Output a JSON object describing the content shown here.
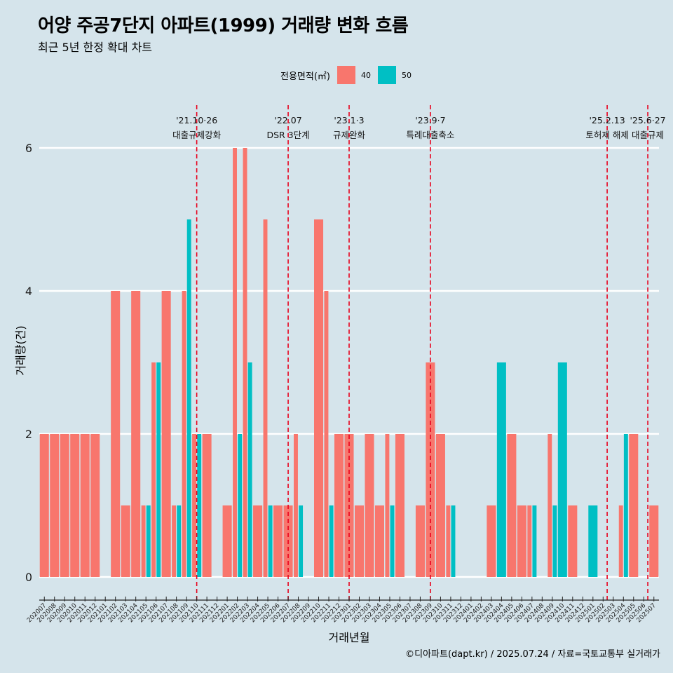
{
  "chart_data": {
    "type": "bar",
    "title": "어양 주공7단지 아파트(1999) 거래량 변화 흐름",
    "subtitle": "최근 5년 한정 확대 차트",
    "xlabel": "거래년월",
    "ylabel": "거래량(건)",
    "ylim": [
      0,
      6.4
    ],
    "yticks": [
      0,
      2,
      4,
      6
    ],
    "grid": true,
    "legend": {
      "title": "전용면적(㎡)",
      "position": "top",
      "entries": [
        {
          "name": "40",
          "color": "#f8766d"
        },
        {
          "name": "50",
          "color": "#00bfc4"
        }
      ]
    },
    "caption": "©디아파트(dapt.kr) / 2025.07.24 / 자료=국토교통부 실거래가",
    "categories": [
      "202007",
      "202008",
      "202009",
      "202010",
      "202011",
      "202012",
      "202101",
      "202102",
      "202103",
      "202104",
      "202105",
      "202106",
      "202107",
      "202108",
      "202109",
      "202110",
      "202111",
      "202112",
      "202201",
      "202202",
      "202203",
      "202204",
      "202205",
      "202206",
      "202207",
      "202208",
      "202209",
      "202210",
      "202211",
      "202212",
      "202301",
      "202302",
      "202303",
      "202304",
      "202305",
      "202306",
      "202307",
      "202308",
      "202309",
      "202310",
      "202311",
      "202312",
      "202401",
      "202402",
      "202403",
      "202404",
      "202405",
      "202406",
      "202407",
      "202408",
      "202409",
      "202410",
      "202411",
      "202412",
      "202501",
      "202502",
      "202503",
      "202504",
      "202505",
      "202506",
      "202507"
    ],
    "series": [
      {
        "name": "40",
        "color": "#f8766d",
        "values": [
          2,
          2,
          2,
          2,
          2,
          2,
          null,
          4,
          1,
          4,
          1,
          3,
          4,
          1,
          4,
          2,
          2,
          null,
          1,
          6,
          6,
          1,
          5,
          1,
          1,
          2,
          null,
          5,
          4,
          2,
          2,
          1,
          2,
          1,
          2,
          2,
          null,
          1,
          3,
          2,
          1,
          null,
          null,
          null,
          1,
          null,
          2,
          1,
          1,
          null,
          2,
          null,
          1,
          null,
          null,
          null,
          null,
          1,
          2,
          null,
          1
        ]
      },
      {
        "name": "50",
        "color": "#00bfc4",
        "values": [
          null,
          null,
          null,
          null,
          null,
          null,
          null,
          null,
          null,
          null,
          1,
          3,
          null,
          1,
          5,
          2,
          null,
          null,
          null,
          2,
          3,
          null,
          1,
          null,
          null,
          1,
          null,
          null,
          1,
          null,
          null,
          null,
          null,
          null,
          1,
          null,
          null,
          null,
          null,
          null,
          1,
          null,
          null,
          null,
          null,
          3,
          null,
          null,
          1,
          null,
          1,
          3,
          null,
          null,
          1,
          null,
          null,
          2,
          null,
          null,
          null
        ]
      }
    ],
    "events": [
      {
        "date_label": "'21.10·26",
        "name": "대출규제강화",
        "at": 15.0
      },
      {
        "date_label": "'22.07",
        "name": "DSR 3단계",
        "at": 24.0
      },
      {
        "date_label": "'23.1·3",
        "name": "규제완화",
        "at": 30.0
      },
      {
        "date_label": "'23.9·7",
        "name": "특례대출축소",
        "at": 38.0
      },
      {
        "date_label": "'25.2.13",
        "name": "토허제 해제",
        "at": 55.4
      },
      {
        "date_label": "'25.6·27",
        "name": "대출규제",
        "at": 59.4
      }
    ]
  }
}
